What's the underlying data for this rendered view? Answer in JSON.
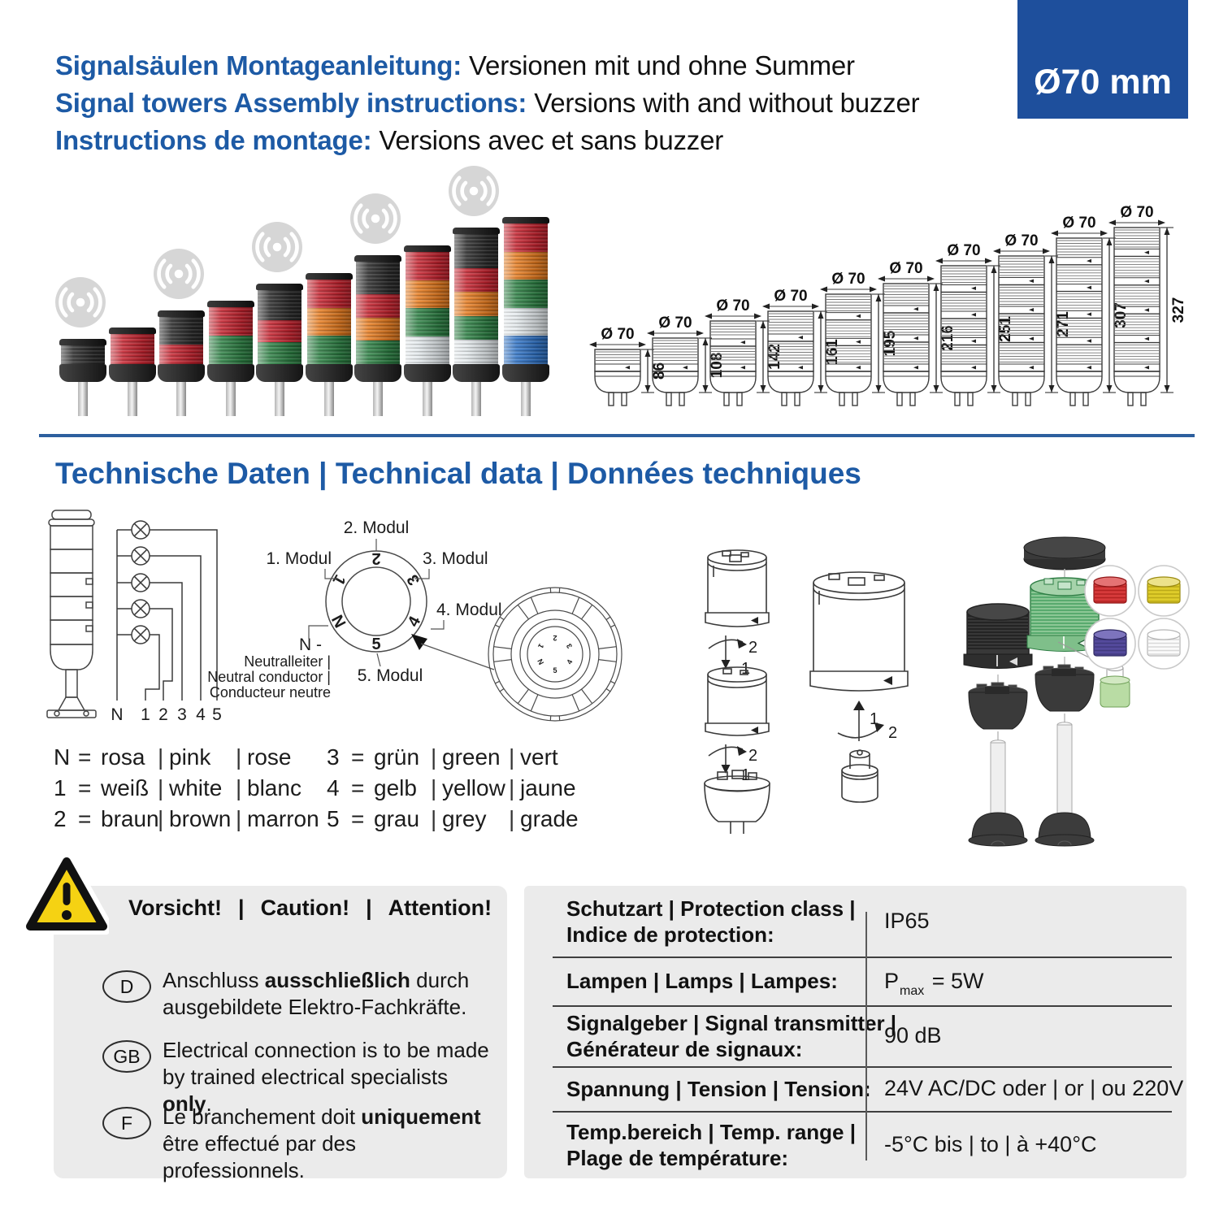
{
  "badge": {
    "label": "Ø70 mm"
  },
  "header": {
    "lines": [
      {
        "lead": "Signalsäulen Montageanleitung:",
        "rest": "Versionen mit und ohne Summer"
      },
      {
        "lead": "Signal towers Assembly instructions:",
        "rest": "Versions with and without buzzer"
      },
      {
        "lead": "Instructions de montage:",
        "rest": "Versions avec et sans buzzer"
      }
    ]
  },
  "section_heading": "Technische Daten | Technical data | Données techniques",
  "colors": {
    "heading_blue": "#1d5aa5",
    "badge_blue": "#1e4f9c",
    "module_red": "#c6222e",
    "module_orange": "#e77b1e",
    "module_green": "#2c8043",
    "module_clear": "#e3e9ec",
    "module_blue": "#2e72c6",
    "module_black": "#2a2a2a",
    "option_red": "#d63a3b",
    "option_yellow": "#decc2a",
    "option_blue": "#544a9c",
    "option_white": "#fafafa",
    "panel_gray": "#ebebeb",
    "warning_yellow": "#f5d213"
  },
  "towers": {
    "dia_label": "Ø 70",
    "items": [
      {
        "modules": [
          "black"
        ],
        "buzzer": true,
        "height_mm": 86
      },
      {
        "modules": [
          "red"
        ],
        "buzzer": false,
        "height_mm": 108
      },
      {
        "modules": [
          "black",
          "red"
        ],
        "buzzer": true,
        "height_mm": 142
      },
      {
        "modules": [
          "red",
          "green"
        ],
        "buzzer": false,
        "height_mm": 161
      },
      {
        "modules": [
          "black",
          "red",
          "green"
        ],
        "buzzer": true,
        "height_mm": 195
      },
      {
        "modules": [
          "red",
          "orange",
          "green"
        ],
        "buzzer": false,
        "height_mm": 216
      },
      {
        "modules": [
          "black",
          "red",
          "orange",
          "green"
        ],
        "buzzer": true,
        "height_mm": 251
      },
      {
        "modules": [
          "red",
          "orange",
          "green",
          "clear"
        ],
        "buzzer": false,
        "height_mm": 271
      },
      {
        "modules": [
          "black",
          "red",
          "orange",
          "green",
          "clear"
        ],
        "buzzer": true,
        "height_mm": 307
      },
      {
        "modules": [
          "red",
          "orange",
          "green",
          "clear",
          "blue"
        ],
        "buzzer": false,
        "height_mm": 327
      }
    ]
  },
  "wiring": {
    "terminals": [
      "N",
      "1",
      "2",
      "3",
      "4",
      "5"
    ]
  },
  "module_diagram": {
    "labels": {
      "m1": "1. Modul",
      "m2": "2. Modul",
      "m3": "3. Modul",
      "m4": "4. Modul",
      "m5": "5. Modul"
    },
    "ring": [
      "1",
      "2",
      "3",
      "4",
      "5",
      "N"
    ],
    "neutral_title": "N -",
    "neutral_lines": [
      "Neutralleiter |",
      "Neutral conductor |",
      "Conducteur neutre"
    ]
  },
  "assembly": {
    "push_step": "1",
    "twist_step": "2"
  },
  "legend": {
    "eq": "=",
    "pipe": "|",
    "left": [
      {
        "key": "N",
        "de": "rosa",
        "en": "pink",
        "fr": "rose"
      },
      {
        "key": "1",
        "de": "weiß",
        "en": "white",
        "fr": "blanc"
      },
      {
        "key": "2",
        "de": "braun",
        "en": "brown",
        "fr": "marron"
      }
    ],
    "right": [
      {
        "key": "3",
        "de": "grün",
        "en": "green",
        "fr": "vert"
      },
      {
        "key": "4",
        "de": "gelb",
        "en": "yellow",
        "fr": "jaune"
      },
      {
        "key": "5",
        "de": "grau",
        "en": "grey",
        "fr": "grade"
      }
    ]
  },
  "warning": {
    "pipe": "|",
    "title": [
      "Vorsicht!",
      "Caution!",
      "Attention!"
    ],
    "items": [
      {
        "flag": "D",
        "lines": [
          [
            {
              "t": "Anschluss ",
              "b": false
            },
            {
              "t": "ausschließlich",
              "b": true
            },
            {
              "t": " durch",
              "b": false
            }
          ],
          [
            {
              "t": "ausgebildete Elektro-Fachkräfte.",
              "b": false
            }
          ]
        ]
      },
      {
        "flag": "GB",
        "lines": [
          [
            {
              "t": "Electrical connection is to be made",
              "b": false
            }
          ],
          [
            {
              "t": "by trained electrical specialists ",
              "b": false
            },
            {
              "t": "only",
              "b": true
            },
            {
              "t": ".",
              "b": false
            }
          ]
        ]
      },
      {
        "flag": "F",
        "lines": [
          [
            {
              "t": "Le branchement doit ",
              "b": false
            },
            {
              "t": "uniquement",
              "b": true
            }
          ],
          [
            {
              "t": "être effectué par des professionnels.",
              "b": false
            }
          ]
        ]
      }
    ]
  },
  "spec_table": {
    "rows": [
      {
        "label": [
          "Schutzart | Protection class |",
          "Indice de protection:"
        ],
        "value": "IP65"
      },
      {
        "label": [
          "Lampen | Lamps | Lampes:"
        ],
        "value_main": "P",
        "value_sub": "max",
        "value_rest": " = 5W"
      },
      {
        "label": [
          "Signalgeber | Signal transmitter |",
          "Générateur de signaux:"
        ],
        "value": "90 dB"
      },
      {
        "label": [
          "Spannung | Tension | Tension:"
        ],
        "value": "24V AC/DC oder | or | ou 220V"
      },
      {
        "label": [
          "Temp.bereich | Temp. range |",
          "Plage de température:"
        ],
        "value": "-5°C bis | to | à  +40°C"
      }
    ]
  }
}
